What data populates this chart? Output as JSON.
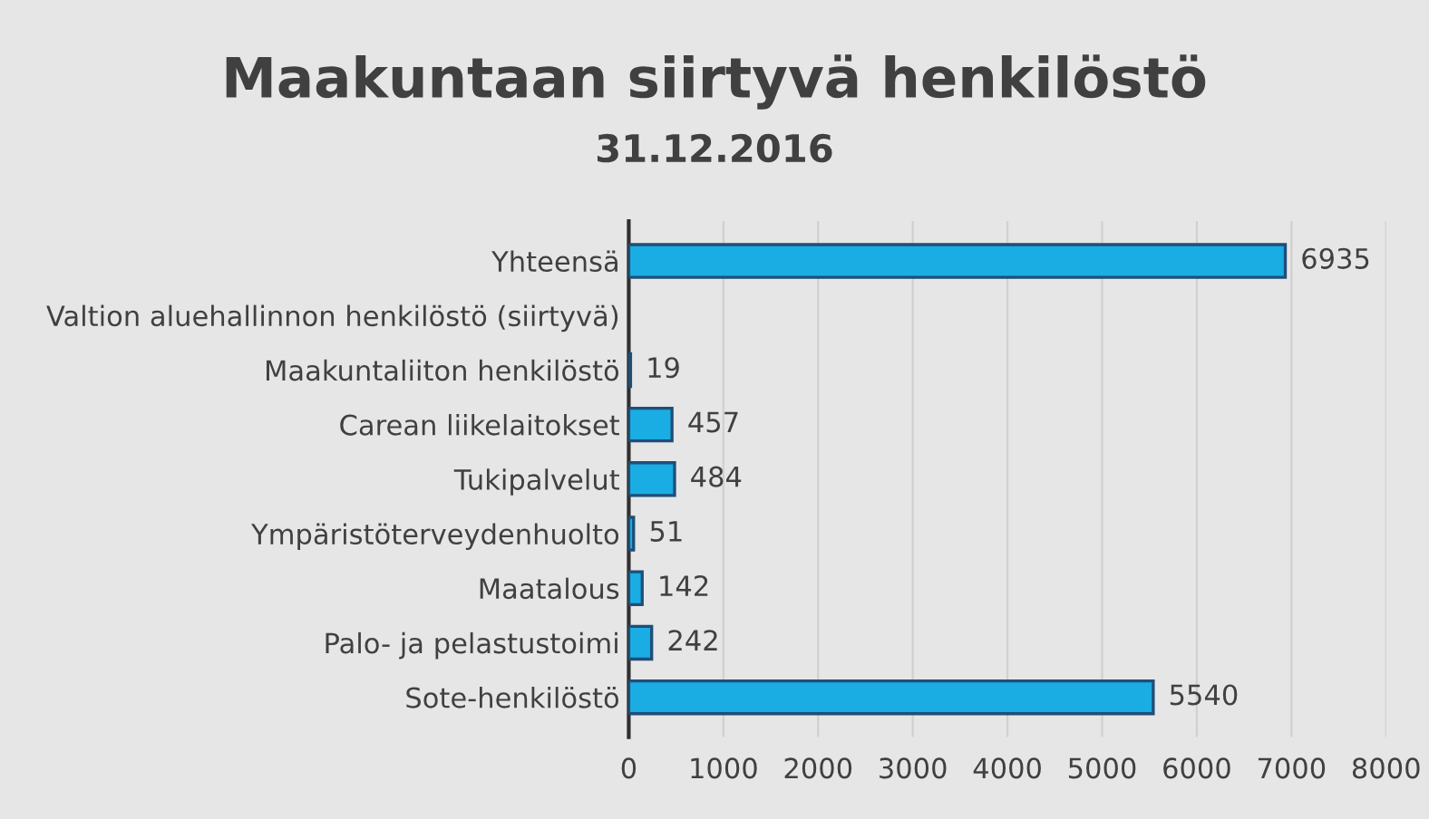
{
  "chart_data": {
    "type": "bar",
    "orientation": "horizontal",
    "title": "Maakuntaan siirtyvä henkilöstö",
    "subtitle": "31.12.2016",
    "categories": [
      "Yhteensä",
      "Valtion aluehallinnon henkilöstö (siirtyvä)",
      "Maakuntaliiton henkilöstö",
      "Carean liikelaitokset",
      "Tukipalvelut",
      "Ympäristöterveydenhuolto",
      "Maatalous",
      "Palo- ja pelastustoimi",
      "Sote-henkilöstö"
    ],
    "values": [
      6935,
      null,
      19,
      457,
      484,
      51,
      142,
      242,
      5540
    ],
    "color": "#1aade4",
    "data_labels": true,
    "xlim": [
      0,
      8000
    ],
    "xticks": [
      0,
      1000,
      2000,
      3000,
      4000,
      5000,
      6000,
      7000,
      8000
    ],
    "grid": "x",
    "legend": false
  }
}
